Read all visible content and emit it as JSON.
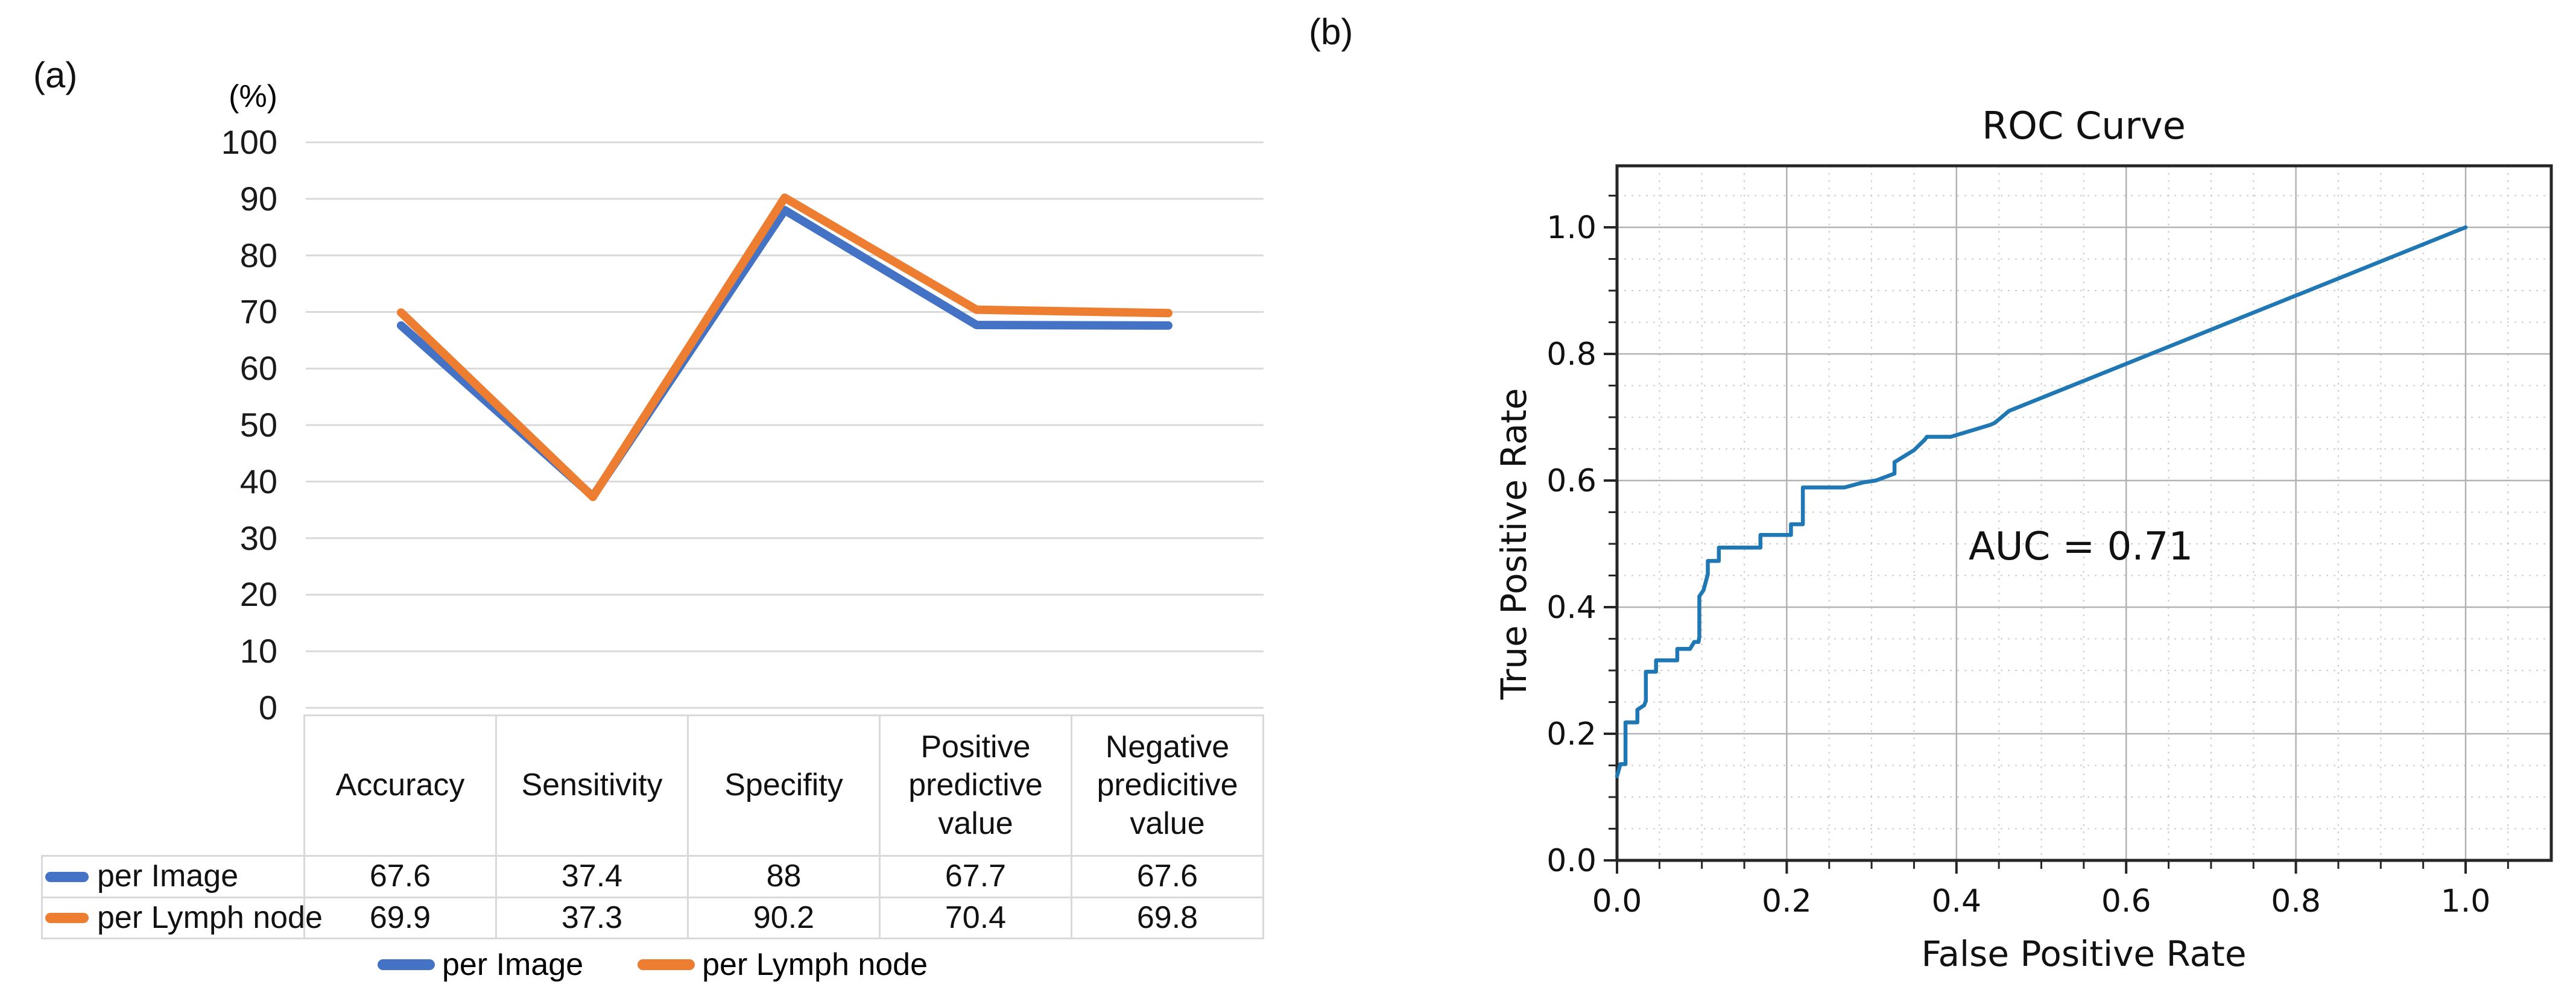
{
  "panel_a": {
    "label": "(a)",
    "unit_label": "(%)"
  },
  "panel_b": {
    "label": "(b)"
  },
  "chart_data": [
    {
      "id": "metrics-line-chart",
      "type": "line",
      "title": "",
      "unit": "(%)",
      "categories": [
        "Accuracy",
        "Sensitivity",
        "Specifity",
        "Positive predictive value",
        "Negative predicitive value"
      ],
      "categories_display": [
        "Accuracy",
        "Sensitivity",
        "Specifity",
        "Positive\npredictive\nvalue",
        "Negative\npredicitive\nvalue"
      ],
      "series": [
        {
          "name": "per Image",
          "color": "#4472C4",
          "values": [
            67.6,
            37.4,
            88,
            67.7,
            67.6
          ]
        },
        {
          "name": "per Lymph node",
          "color": "#ED7D31",
          "values": [
            69.9,
            37.3,
            90.2,
            70.4,
            69.8
          ]
        }
      ],
      "ylim": [
        0,
        100
      ],
      "y_ticks": [
        100,
        90,
        80,
        70,
        60,
        50,
        40,
        30,
        20,
        10,
        0
      ],
      "grid": true,
      "grid_color": "#D9D9D9",
      "legend_position": "bottom",
      "data_table": true
    },
    {
      "id": "roc-curve",
      "type": "line",
      "title": "ROC Curve",
      "xlabel": "False Positive Rate",
      "ylabel": "True Positive Rate",
      "annotation": "AUC = 0.71",
      "auc": 0.71,
      "xlim": [
        0,
        1.1
      ],
      "ylim": [
        0,
        1.1
      ],
      "x_ticks": [
        0.0,
        0.2,
        0.4,
        0.6,
        0.8,
        1.0
      ],
      "x_tick_labels": [
        "0.0",
        "0.2",
        "0.4",
        "0.6",
        "0.8",
        "1.0"
      ],
      "y_ticks": [
        0.0,
        0.2,
        0.4,
        0.6,
        0.8,
        1.0
      ],
      "y_tick_labels": [
        "0.0",
        "0.2",
        "0.4",
        "0.6",
        "0.8",
        "1.0"
      ],
      "minor_step": 0.05,
      "grid": true,
      "major_grid_color": "#b2b2b2",
      "minor_grid_color": "#cccccc",
      "spine_color": "#262626",
      "line_color": "#1f77b4",
      "points": [
        [
          0,
          0.133
        ],
        [
          0.004,
          0.152
        ],
        [
          0.01,
          0.152
        ],
        [
          0.01,
          0.218
        ],
        [
          0.024,
          0.218
        ],
        [
          0.024,
          0.238
        ],
        [
          0.032,
          0.245
        ],
        [
          0.034,
          0.252
        ],
        [
          0.034,
          0.298
        ],
        [
          0.046,
          0.298
        ],
        [
          0.046,
          0.316
        ],
        [
          0.071,
          0.316
        ],
        [
          0.071,
          0.334
        ],
        [
          0.086,
          0.334
        ],
        [
          0.091,
          0.345
        ],
        [
          0.096,
          0.345
        ],
        [
          0.097,
          0.352
        ],
        [
          0.097,
          0.417
        ],
        [
          0.102,
          0.427
        ],
        [
          0.107,
          0.452
        ],
        [
          0.107,
          0.473
        ],
        [
          0.12,
          0.473
        ],
        [
          0.12,
          0.494
        ],
        [
          0.169,
          0.494
        ],
        [
          0.169,
          0.514
        ],
        [
          0.205,
          0.514
        ],
        [
          0.205,
          0.531
        ],
        [
          0.219,
          0.531
        ],
        [
          0.219,
          0.589
        ],
        [
          0.268,
          0.589
        ],
        [
          0.29,
          0.597
        ],
        [
          0.305,
          0.6
        ],
        [
          0.327,
          0.611
        ],
        [
          0.327,
          0.629
        ],
        [
          0.35,
          0.648
        ],
        [
          0.363,
          0.665
        ],
        [
          0.365,
          0.669
        ],
        [
          0.393,
          0.669
        ],
        [
          0.44,
          0.688
        ],
        [
          0.445,
          0.691
        ],
        [
          0.462,
          0.71
        ],
        [
          1.0,
          1.0
        ]
      ]
    }
  ]
}
